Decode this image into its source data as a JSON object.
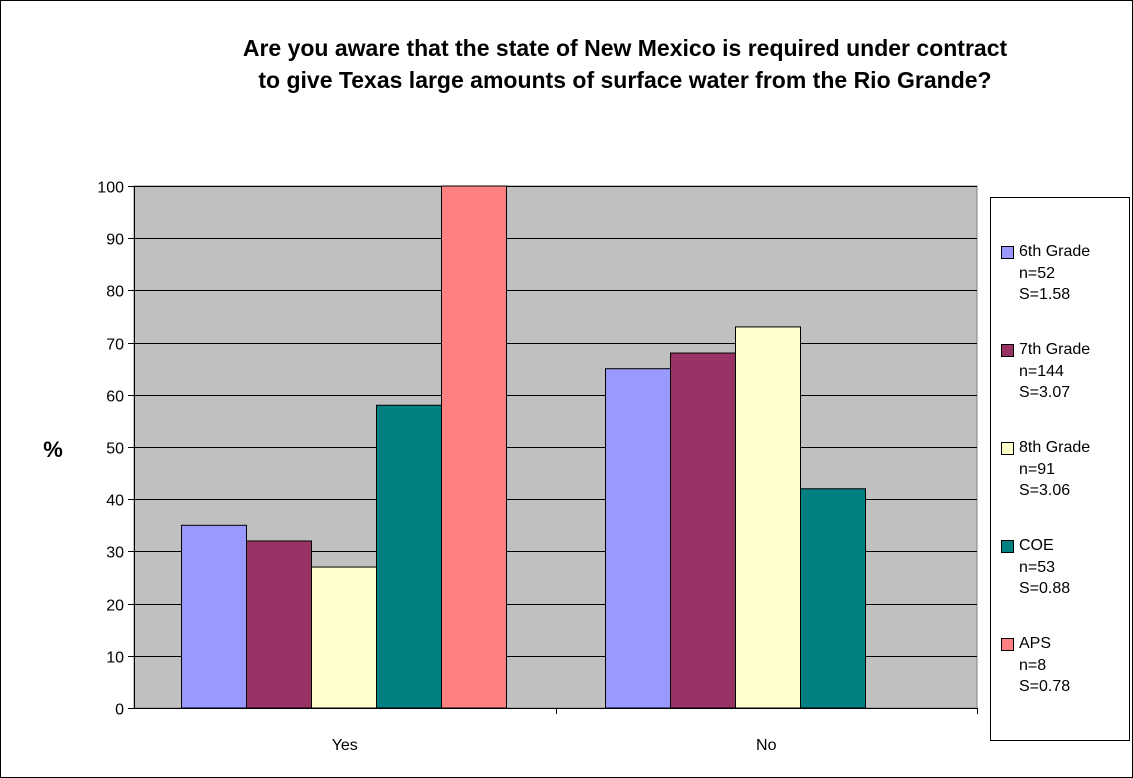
{
  "chart_data": {
    "type": "bar",
    "title_lines": [
      "Are you aware that the state of New Mexico is required under contract",
      "to give Texas large amounts of surface water from the Rio Grande?"
    ],
    "xlabel": "",
    "ylabel": "%",
    "ylim": [
      0,
      100
    ],
    "yticks": [
      0,
      10,
      20,
      30,
      40,
      50,
      60,
      70,
      80,
      90,
      100
    ],
    "categories": [
      "Yes",
      "No"
    ],
    "grid": true,
    "legend_position": "right",
    "series": [
      {
        "name": "6th Grade",
        "n": "n=52",
        "s": "S=1.58",
        "color": "#9999ff",
        "values": [
          35,
          65
        ]
      },
      {
        "name": "7th Grade",
        "n": "n=144",
        "s": "S=3.07",
        "color": "#993366",
        "values": [
          32,
          68
        ]
      },
      {
        "name": "8th Grade",
        "n": "n=91",
        "s": "S=3.06",
        "color": "#ffffcc",
        "values": [
          27,
          73
        ]
      },
      {
        "name": "COE",
        "n": "n=53",
        "s": "S=0.88",
        "color": "#008080",
        "values": [
          58,
          42
        ]
      },
      {
        "name": "APS",
        "n": "n=8",
        "s": "S=0.78",
        "color": "#ff8080",
        "values": [
          100,
          null
        ]
      }
    ],
    "plot_background": "#c0c0c0"
  }
}
